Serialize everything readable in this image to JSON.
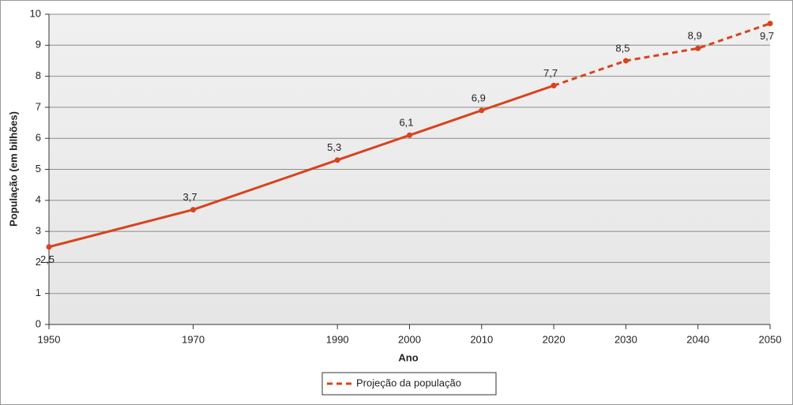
{
  "chart_data": {
    "type": "line",
    "xlabel": "Ano",
    "ylabel": "População (em bilhões)",
    "x": [
      1950,
      1970,
      1990,
      2000,
      2010,
      2020,
      2030,
      2040,
      2050
    ],
    "series": [
      {
        "color": "#d8431f",
        "style": "solid",
        "values": [
          2.5,
          3.7,
          5.3,
          6.1,
          6.9,
          7.7,
          null,
          null,
          null
        ],
        "value_labels": [
          "2,5",
          "3,7",
          "5,3",
          "6,1",
          "6,9",
          "7,7",
          null,
          null,
          null
        ]
      },
      {
        "name": "Projeção da população",
        "color": "#d8431f",
        "style": "dashed",
        "values": [
          null,
          null,
          null,
          null,
          null,
          7.7,
          8.5,
          8.9,
          9.7
        ],
        "value_labels": [
          null,
          null,
          null,
          null,
          null,
          null,
          "8,5",
          "8,9",
          "9,7"
        ]
      }
    ],
    "xlim": [
      1950,
      2050
    ],
    "xticks": [
      1950,
      1970,
      1990,
      2000,
      2010,
      2020,
      2030,
      2040,
      2050
    ],
    "ylim": [
      0,
      10
    ],
    "yticks": [
      0,
      1,
      2,
      3,
      4,
      5,
      6,
      7,
      8,
      9,
      10
    ],
    "grid": true
  }
}
